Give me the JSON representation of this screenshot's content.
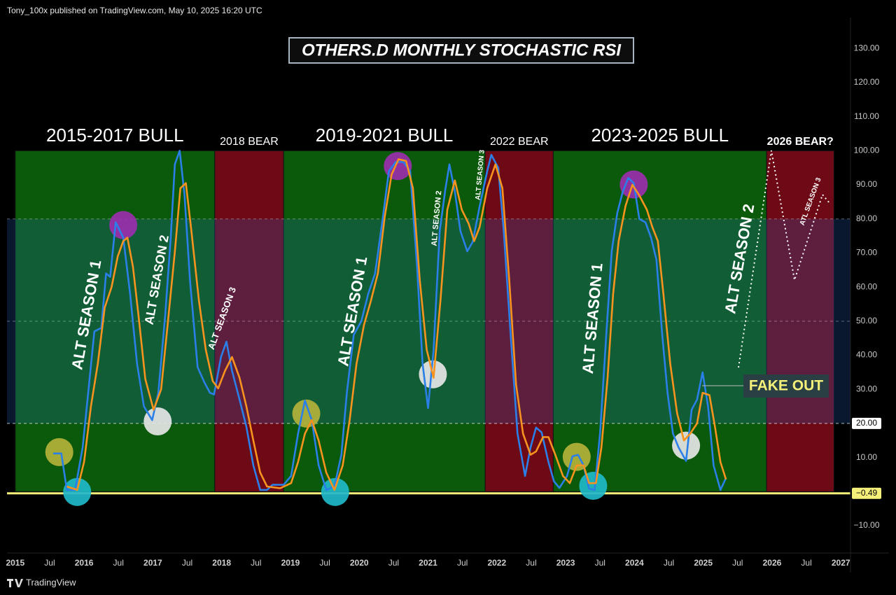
{
  "header": "Tony_100x published on TradingView.com, May 10, 2025 16:20 UTC",
  "footer": "TradingView",
  "chart_data": {
    "type": "line",
    "title": "OTHERS.D MONTHLY STOCHASTIC RSI",
    "xlim": [
      2014.88,
      2027.14
    ],
    "ylim": [
      -18,
      136
    ],
    "grid": false,
    "xticks": [
      2015,
      {
        "value": 2015.5,
        "label": "Jul"
      },
      2016,
      {
        "value": 2016.5,
        "label": "Jul"
      },
      2017,
      {
        "value": 2017.5,
        "label": "Jul"
      },
      2018,
      {
        "value": 2018.5,
        "label": "Jul"
      },
      2019,
      {
        "value": 2019.5,
        "label": "Jul"
      },
      2020,
      {
        "value": 2020.5,
        "label": "Jul"
      },
      2021,
      {
        "value": 2021.5,
        "label": "Jul"
      },
      2022,
      {
        "value": 2022.5,
        "label": "Jul"
      },
      2023,
      {
        "value": 2023.5,
        "label": "Jul"
      },
      2024,
      {
        "value": 2024.5,
        "label": "Jul"
      },
      2025,
      {
        "value": 2025.5,
        "label": "Jul"
      },
      2026,
      {
        "value": 2026.5,
        "label": "Jul"
      },
      2027
    ],
    "yticks": [
      {
        "value": 130,
        "label": "130.00"
      },
      {
        "value": 120,
        "label": "120.00"
      },
      {
        "value": 110,
        "label": "110.00"
      },
      {
        "value": 100,
        "label": "100.00"
      },
      {
        "value": 90,
        "label": "90.00"
      },
      {
        "value": 80,
        "label": "80.00"
      },
      {
        "value": 70,
        "label": "70.00"
      },
      {
        "value": 60,
        "label": "60.00"
      },
      {
        "value": 50,
        "label": "50.00"
      },
      {
        "value": 40,
        "label": "40.00"
      },
      {
        "value": 30,
        "label": "30.00"
      },
      {
        "value": 10,
        "label": "10.00"
      },
      {
        "value": -10,
        "label": "−10.00"
      }
    ],
    "levels": [
      80,
      50,
      20
    ],
    "level_badge": {
      "value": 20,
      "label": "20.00"
    },
    "price_line": {
      "value": -0.49,
      "label": "−0.49",
      "color": "#f5f07a"
    },
    "zone_range": [
      0,
      100
    ],
    "zones": [
      {
        "label": "2015-2017 BULL",
        "start": 2015.0,
        "end": 2017.9,
        "color": "#0b5a0b"
      },
      {
        "label": "2018 BEAR",
        "start": 2017.9,
        "end": 2018.9,
        "color": "#6e0a16"
      },
      {
        "label": "2019-2021 BULL",
        "start": 2018.9,
        "end": 2021.83,
        "color": "#0b5a0b"
      },
      {
        "label": "2022 BEAR",
        "start": 2021.83,
        "end": 2022.82,
        "color": "#6e0a16"
      },
      {
        "label": "2023-2025 BULL",
        "start": 2022.82,
        "end": 2025.92,
        "color": "#0b5a0b"
      },
      {
        "label": "2026 BEAR?",
        "start": 2025.92,
        "end": 2026.9,
        "color": "#6e0a16"
      }
    ],
    "series": [
      {
        "color": "#2a7fe8",
        "x": [
          2015.55,
          2015.67,
          2015.75,
          2015.87,
          2015.98,
          2016.06,
          2016.15,
          2016.25,
          2016.32,
          2016.38,
          2016.46,
          2016.57,
          2016.67,
          2016.77,
          2016.87,
          2016.99,
          2017.08,
          2017.18,
          2017.26,
          2017.32,
          2017.39,
          2017.46,
          2017.54,
          2017.65,
          2017.75,
          2017.83,
          2017.89,
          2017.99,
          2018.07,
          2018.15,
          2018.26,
          2018.36,
          2018.46,
          2018.56,
          2018.66,
          2018.74,
          2018.9,
          2019.01,
          2019.11,
          2019.21,
          2019.31,
          2019.41,
          2019.52,
          2019.64,
          2019.74,
          2019.82,
          2019.92,
          2020.03,
          2020.13,
          2020.23,
          2020.33,
          2020.43,
          2020.53,
          2020.64,
          2020.74,
          2020.84,
          2020.92,
          2021.0,
          2021.08,
          2021.17,
          2021.25,
          2021.31,
          2021.39,
          2021.47,
          2021.57,
          2021.65,
          2021.75,
          2021.86,
          2021.92,
          2022.02,
          2022.1,
          2022.2,
          2022.3,
          2022.41,
          2022.49,
          2022.57,
          2022.65,
          2022.75,
          2022.83,
          2022.91,
          2023.02,
          2023.1,
          2023.18,
          2023.26,
          2023.34,
          2023.42,
          2023.5,
          2023.59,
          2023.67,
          2023.75,
          2023.83,
          2023.91,
          2023.99,
          2024.07,
          2024.16,
          2024.24,
          2024.32,
          2024.4,
          2024.48,
          2024.56,
          2024.64,
          2024.75,
          2024.83,
          2024.91,
          2024.99,
          2025.07,
          2025.15,
          2025.25,
          2025.33
        ],
        "values": [
          11.2,
          11.2,
          0.5,
          0.5,
          13,
          29,
          47,
          48,
          64,
          63,
          79,
          74.5,
          58,
          37.5,
          25,
          21,
          29,
          52,
          74.5,
          96,
          100,
          87,
          62,
          36.5,
          32,
          29,
          28.5,
          39.5,
          44,
          35.5,
          27,
          19,
          7.7,
          0.5,
          0.5,
          2,
          2,
          4.6,
          17,
          26.7,
          21,
          7.7,
          0.5,
          1.5,
          10.8,
          29,
          46,
          50,
          58,
          64,
          78.5,
          94,
          96.7,
          96.7,
          94,
          66,
          37.5,
          24.5,
          41.6,
          76.5,
          88.5,
          96,
          88,
          76.5,
          70.5,
          73.3,
          83.7,
          94,
          98.8,
          95,
          76.5,
          46,
          17,
          4.6,
          13,
          18.8,
          17.4,
          8.7,
          3,
          1.1,
          4.6,
          10.4,
          10.8,
          7.7,
          0.9,
          0.5,
          17,
          46,
          70.5,
          81.7,
          88,
          92,
          90.5,
          80,
          79,
          74.5,
          68,
          46.8,
          29,
          17,
          13,
          9,
          24,
          27,
          35,
          25,
          7.7,
          0.5,
          4
        ]
      },
      {
        "color": "#f7931e",
        "x": [
          2015.75,
          2015.9,
          2016.0,
          2016.1,
          2016.2,
          2016.3,
          2016.4,
          2016.49,
          2016.57,
          2016.63,
          2016.71,
          2016.79,
          2016.89,
          2017.01,
          2017.12,
          2017.22,
          2017.32,
          2017.4,
          2017.48,
          2017.56,
          2017.67,
          2017.77,
          2017.87,
          2017.95,
          2018.05,
          2018.15,
          2018.26,
          2018.36,
          2018.46,
          2018.56,
          2018.66,
          2018.85,
          2019.01,
          2019.11,
          2019.21,
          2019.31,
          2019.41,
          2019.52,
          2019.64,
          2019.76,
          2019.86,
          2019.96,
          2020.07,
          2020.17,
          2020.27,
          2020.37,
          2020.47,
          2020.57,
          2020.68,
          2020.78,
          2020.88,
          2020.98,
          2021.08,
          2021.18,
          2021.28,
          2021.39,
          2021.49,
          2021.59,
          2021.67,
          2021.75,
          2021.86,
          2021.98,
          2022.08,
          2022.18,
          2022.28,
          2022.38,
          2022.49,
          2022.57,
          2022.67,
          2022.75,
          2022.85,
          2022.96,
          2023.06,
          2023.16,
          2023.26,
          2023.34,
          2023.44,
          2023.52,
          2023.61,
          2023.69,
          2023.77,
          2023.87,
          2023.97,
          2024.07,
          2024.18,
          2024.26,
          2024.34,
          2024.42,
          2024.52,
          2024.62,
          2024.72,
          2024.81,
          2024.91,
          2024.99,
          2025.09,
          2025.17,
          2025.25,
          2025.33
        ],
        "values": [
          1.5,
          0.5,
          8.7,
          25,
          37.5,
          54,
          60,
          69,
          73.5,
          74.5,
          66,
          52,
          33,
          24,
          30,
          50,
          70.4,
          89,
          90.5,
          76.5,
          56,
          41.6,
          32.4,
          30.3,
          35.5,
          39.5,
          33.4,
          25,
          15,
          5.6,
          1.5,
          1,
          2.5,
          8.7,
          17,
          21,
          15,
          5.6,
          0.5,
          7.7,
          21,
          37.5,
          49,
          56,
          64,
          80.6,
          93,
          97.5,
          97,
          89,
          62,
          41.6,
          33.4,
          56,
          82.7,
          91.3,
          82.7,
          78.6,
          73.5,
          77.6,
          89,
          96,
          89,
          62,
          31.3,
          17,
          10.8,
          11.8,
          16,
          16,
          10.8,
          4.6,
          2.5,
          7.7,
          7.7,
          2.5,
          2.5,
          13,
          33.4,
          58,
          73.5,
          83.8,
          90,
          86.9,
          82.7,
          77.6,
          73.5,
          58,
          37.5,
          23,
          15,
          17,
          20,
          29,
          28.3,
          19,
          8.7,
          3.6
        ]
      }
    ],
    "circles": [
      {
        "x": 2015.64,
        "y": 11.6,
        "color": "#b3b23a"
      },
      {
        "x": 2015.9,
        "y": -0.1,
        "color": "#1fb8c9"
      },
      {
        "x": 2016.57,
        "y": 78.2,
        "color": "#9b2fae"
      },
      {
        "x": 2017.07,
        "y": 20.6,
        "color": "#e6e6e6"
      },
      {
        "x": 2019.23,
        "y": 22.9,
        "color": "#b3b23a"
      },
      {
        "x": 2019.65,
        "y": -0.1,
        "color": "#1fb8c9"
      },
      {
        "x": 2020.56,
        "y": 95.5,
        "color": "#9b2fae"
      },
      {
        "x": 2021.07,
        "y": 34.4,
        "color": "#e6e6e6"
      },
      {
        "x": 2023.16,
        "y": 10.2,
        "color": "#b3b23a"
      },
      {
        "x": 2023.4,
        "y": 1.7,
        "color": "#1fb8c9"
      },
      {
        "x": 2023.99,
        "y": 90.1,
        "color": "#9b2fae"
      },
      {
        "x": 2024.75,
        "y": 13.5,
        "color": "#e6e6e6"
      }
    ],
    "annotations": [
      "ALT SEASON 1",
      "ALT SEASON 2",
      "ALT SEASON 3",
      "ALT SEASON 1",
      "ALT SEASON 2",
      "ALT SEASON 3",
      "ALT SEASON 1",
      "ALT SEASON 2",
      "ATL SEASON 3"
    ],
    "callout": "FAKE OUT"
  }
}
